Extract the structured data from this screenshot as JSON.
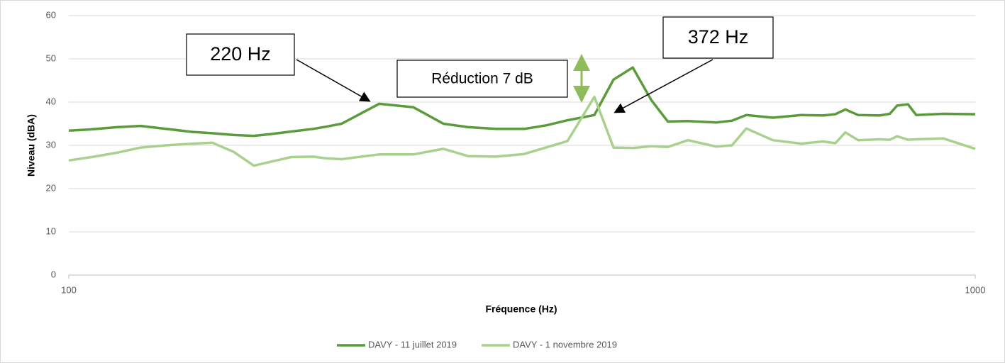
{
  "chart_data": {
    "type": "line",
    "x": [
      100,
      106,
      113,
      120,
      128,
      137,
      144,
      152,
      160,
      167,
      176,
      186,
      192,
      200,
      220,
      240,
      259,
      276,
      296,
      318,
      336,
      355,
      380,
      399,
      419,
      439,
      458,
      482,
      518,
      539,
      559,
      598,
      643,
      679,
      701,
      719,
      743,
      784,
      805,
      820,
      843,
      861,
      922,
      1000
    ],
    "series": [
      {
        "name": "DAVY - 11 juillet 2019",
        "color": "#5b9b3c",
        "values": [
          33.4,
          33.7,
          34.2,
          34.5,
          33.8,
          33.1,
          32.8,
          32.4,
          32.2,
          32.6,
          33.2,
          33.8,
          34.3,
          35.0,
          39.6,
          38.8,
          35.0,
          34.2,
          33.8,
          33.8,
          34.6,
          35.8,
          37.0,
          45.2,
          48.0,
          40.5,
          35.5,
          35.6,
          35.3,
          35.7,
          37.0,
          36.4,
          37.0,
          36.9,
          37.2,
          38.3,
          37.0,
          36.9,
          37.3,
          39.2,
          39.5,
          37.0,
          37.3,
          37.2
        ]
      },
      {
        "name": "DAVY - 1 novembre 2019",
        "color": "#a9d18e",
        "values": [
          26.5,
          27.3,
          28.3,
          29.5,
          30.0,
          30.4,
          30.6,
          28.5,
          25.3,
          26.2,
          27.3,
          27.4,
          27.0,
          26.8,
          27.9,
          27.9,
          29.2,
          27.5,
          27.4,
          28.0,
          29.5,
          31.0,
          41.2,
          29.5,
          29.4,
          29.8,
          29.6,
          31.2,
          29.7,
          30.0,
          33.9,
          31.2,
          30.4,
          30.9,
          30.5,
          33.0,
          31.2,
          31.4,
          31.3,
          32.1,
          31.3,
          31.4,
          31.6,
          29.2
        ]
      }
    ],
    "xlabel": "Fréquence (Hz)",
    "ylabel": "Niveau (dBA)",
    "xlim": [
      100,
      1000
    ],
    "xticks": [
      100,
      1000
    ],
    "xscale": "log",
    "ylim": [
      0,
      60
    ],
    "yticks": [
      0,
      10,
      20,
      30,
      40,
      50,
      60
    ],
    "grid": true,
    "legend": "bottom",
    "annotations": [
      "220 Hz",
      "372 Hz",
      "Réduction 7 dB"
    ]
  }
}
